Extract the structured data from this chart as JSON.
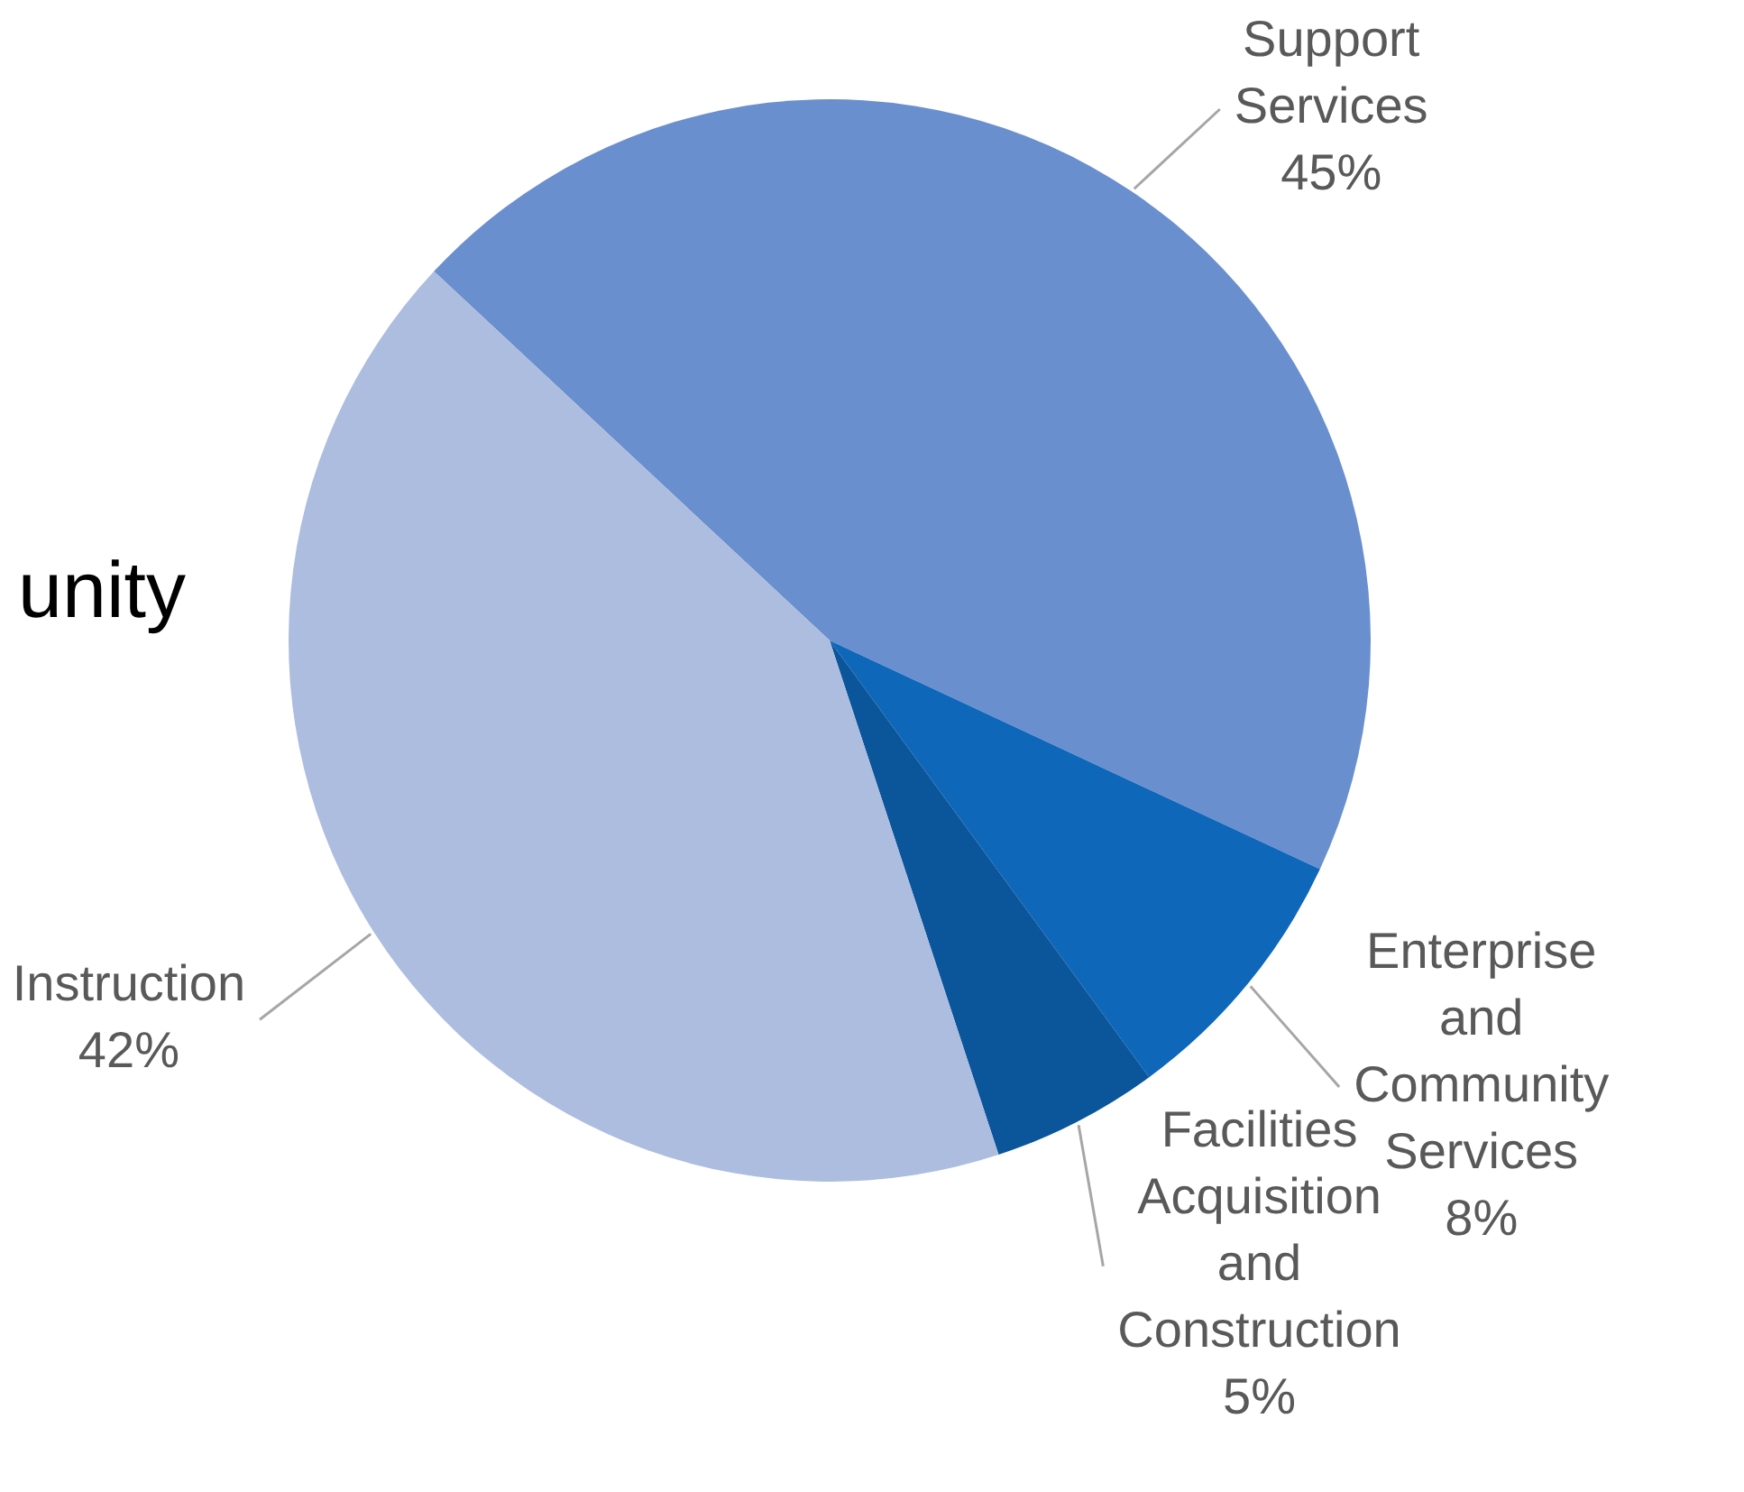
{
  "chart_data": {
    "type": "pie",
    "categories": [
      "Support Services",
      "Enterprise and Community Services",
      "Facilities Acquisition and Construction",
      "Instruction"
    ],
    "values": [
      45,
      8,
      5,
      42
    ],
    "value_labels": [
      "45%",
      "8%",
      "5%",
      "42%"
    ],
    "colors": [
      "#6a8fce",
      "#0f67b9",
      "#0b559b",
      "#adbde0"
    ],
    "annotations": [
      "unity"
    ],
    "legend": false
  }
}
